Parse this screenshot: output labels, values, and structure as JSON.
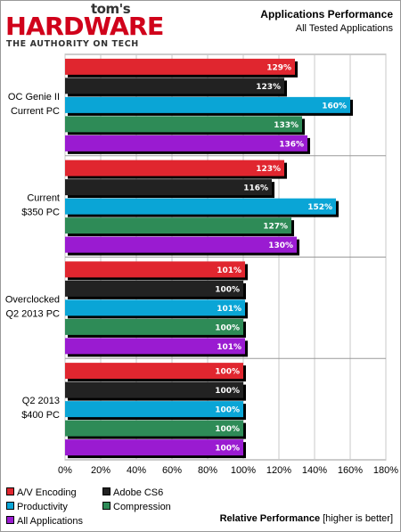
{
  "header": {
    "logo_top": "tom's",
    "logo_main": "HARDWARE",
    "logo_tagline": "THE AUTHORITY ON TECH",
    "title": "Applications Performance",
    "subtitle": "All Tested Applications"
  },
  "chart_data": {
    "type": "bar",
    "orientation": "horizontal",
    "title": "Applications Performance",
    "subtitle": "All Tested Applications",
    "xlabel_bold": "Relative Performance",
    "xlabel_note": "[higher is better]",
    "xlim": [
      0,
      180
    ],
    "xticks": [
      "0%",
      "20%",
      "40%",
      "60%",
      "80%",
      "100%",
      "120%",
      "140%",
      "160%",
      "180%"
    ],
    "grid": true,
    "legend_position": "bottom-left",
    "groups": [
      {
        "label_lines": [
          "OC Genie II",
          "Current PC"
        ]
      },
      {
        "label_lines": [
          "Current",
          "$350 PC"
        ]
      },
      {
        "label_lines": [
          "Overclocked",
          "Q2 2013 PC"
        ]
      },
      {
        "label_lines": [
          "Q2 2013",
          "$400 PC"
        ]
      }
    ],
    "series": [
      {
        "name": "A/V Encoding",
        "color": "#e0262f",
        "values": [
          129,
          123,
          101,
          100
        ]
      },
      {
        "name": "Adobe CS6",
        "color": "#222222",
        "values": [
          123,
          116,
          100,
          100
        ]
      },
      {
        "name": "Productivity",
        "color": "#0aa5d6",
        "values": [
          160,
          152,
          101,
          100
        ]
      },
      {
        "name": "Compression",
        "color": "#2e8b57",
        "values": [
          133,
          127,
          100,
          100
        ]
      },
      {
        "name": "All Applications",
        "color": "#9a1bd1",
        "values": [
          136,
          130,
          101,
          100
        ]
      }
    ],
    "value_suffix": "%"
  }
}
